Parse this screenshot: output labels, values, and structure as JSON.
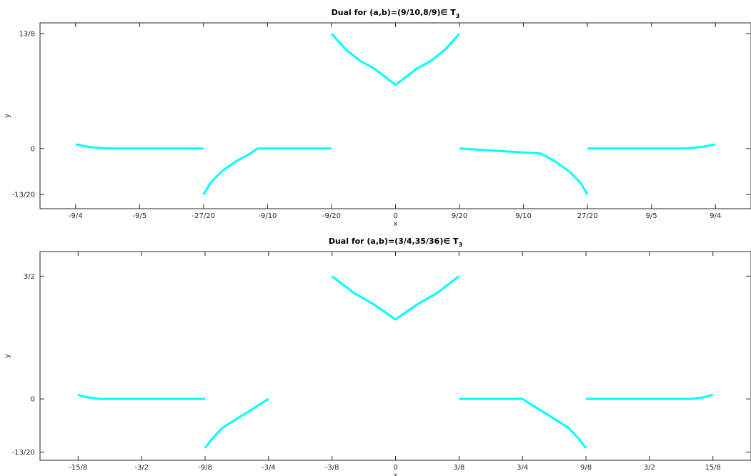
{
  "chart_data": [
    {
      "type": "line",
      "title": "Dual for (a,b)=(9/10,8/9)∈ T",
      "title_subscript": "3",
      "xlabel": "x",
      "ylabel": "y",
      "xlim": [
        -2.5,
        2.5
      ],
      "ylim": [
        -0.85,
        1.775
      ],
      "x_ticks": [
        -2.25,
        -1.8,
        -1.35,
        -0.9,
        -0.45,
        0,
        0.45,
        0.9,
        1.35,
        1.8,
        2.25
      ],
      "x_tick_labels": [
        "-9/4",
        "-9/5",
        "-27/20",
        "-9/10",
        "-9/20",
        "0",
        "9/20",
        "9/10",
        "27/20",
        "9/5",
        "9/4"
      ],
      "y_ticks": [
        -0.65,
        0,
        1.625
      ],
      "y_tick_labels": [
        "-13/20",
        "0",
        "13/8"
      ],
      "grid": false,
      "line_color": "#00ffff",
      "series": [
        {
          "x": [
            -0.45,
            -0.35,
            -0.25,
            -0.15,
            0,
            0.15,
            0.25,
            0.35,
            0.45
          ],
          "y": [
            1.625,
            1.4,
            1.24,
            1.13,
            0.9,
            1.13,
            1.24,
            1.4,
            1.625
          ]
        },
        {
          "x": [
            -2.25,
            -2.15,
            -2.03,
            -1.35
          ],
          "y": [
            0.06,
            0.02,
            0.0,
            0.0
          ]
        },
        {
          "x": [
            -1.35,
            -1.3,
            -1.22,
            -1.12,
            -1.02,
            -0.97,
            -0.45
          ],
          "y": [
            -0.65,
            -0.48,
            -0.32,
            -0.18,
            -0.07,
            0.0,
            0.0
          ]
        },
        {
          "x": [
            0.45,
            1.02,
            1.12,
            1.22,
            1.3,
            1.35
          ],
          "y": [
            0.0,
            -0.07,
            -0.18,
            -0.32,
            -0.48,
            -0.65
          ]
        },
        {
          "x": [
            1.35,
            2.03,
            2.15,
            2.25
          ],
          "y": [
            0.0,
            0.0,
            0.02,
            0.06
          ]
        }
      ]
    },
    {
      "type": "line",
      "title": "Dual for (a,b)=(3/4,35/36)∈ T",
      "title_subscript": "3",
      "xlabel": "x",
      "ylabel": "y",
      "xlim": [
        -2.1,
        2.1
      ],
      "ylim": [
        -0.75,
        1.8
      ],
      "x_ticks": [
        -1.875,
        -1.5,
        -1.125,
        -0.75,
        -0.375,
        0,
        0.375,
        0.75,
        1.125,
        1.5,
        1.875
      ],
      "x_tick_labels": [
        "-15/8",
        "-3/2",
        "-9/8",
        "-3/4",
        "-3/8",
        "0",
        "3/8",
        "3/4",
        "9/8",
        "3/2",
        "15/8"
      ],
      "y_ticks": [
        -0.65,
        0,
        1.5
      ],
      "y_tick_labels": [
        "-13/20",
        "0",
        "3/2"
      ],
      "grid": false,
      "line_color": "#00ffff",
      "series": [
        {
          "x": [
            -0.375,
            -0.25,
            -0.125,
            0,
            0.125,
            0.25,
            0.375
          ],
          "y": [
            1.5,
            1.3,
            1.15,
            0.97,
            1.15,
            1.3,
            1.5
          ]
        },
        {
          "x": [
            -1.875,
            -1.82,
            -1.75,
            -1.125
          ],
          "y": [
            0.05,
            0.02,
            0.0,
            0.0
          ]
        },
        {
          "x": [
            -1.125,
            -1.08,
            -1.02,
            -0.75
          ],
          "y": [
            -0.6,
            -0.48,
            -0.35,
            0.0
          ]
        },
        {
          "x": [
            0.375,
            0.75,
            1.02,
            1.08,
            1.125
          ],
          "y": [
            0.0,
            0.0,
            -0.35,
            -0.48,
            -0.6
          ]
        },
        {
          "x": [
            1.125,
            1.75,
            1.82,
            1.875
          ],
          "y": [
            0.0,
            0.0,
            0.02,
            0.05
          ]
        }
      ]
    }
  ]
}
